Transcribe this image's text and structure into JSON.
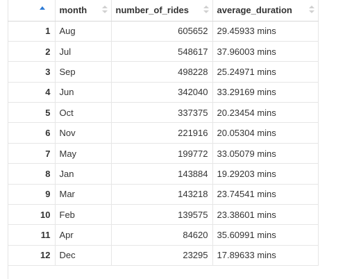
{
  "table": {
    "columns": [
      "",
      "month",
      "number_of_rides",
      "average_duration"
    ],
    "sorted_column_index": 0,
    "rows": [
      {
        "n": "1",
        "month": "Aug",
        "number_of_rides": "605652",
        "average_duration": "29.45933 mins"
      },
      {
        "n": "2",
        "month": "Jul",
        "number_of_rides": "548617",
        "average_duration": "37.96003 mins"
      },
      {
        "n": "3",
        "month": "Sep",
        "number_of_rides": "498228",
        "average_duration": "25.24971 mins"
      },
      {
        "n": "4",
        "month": "Jun",
        "number_of_rides": "342040",
        "average_duration": "33.29169 mins"
      },
      {
        "n": "5",
        "month": "Oct",
        "number_of_rides": "337375",
        "average_duration": "20.23454 mins"
      },
      {
        "n": "6",
        "month": "Nov",
        "number_of_rides": "221916",
        "average_duration": "20.05304 mins"
      },
      {
        "n": "7",
        "month": "May",
        "number_of_rides": "199772",
        "average_duration": "33.05079 mins"
      },
      {
        "n": "8",
        "month": "Jan",
        "number_of_rides": "143884",
        "average_duration": "19.29203 mins"
      },
      {
        "n": "9",
        "month": "Mar",
        "number_of_rides": "143218",
        "average_duration": "23.74541 mins"
      },
      {
        "n": "10",
        "month": "Feb",
        "number_of_rides": "139575",
        "average_duration": "23.38601 mins"
      },
      {
        "n": "11",
        "month": "Apr",
        "number_of_rides": "84620",
        "average_duration": "35.60991 mins"
      },
      {
        "n": "12",
        "month": "Dec",
        "number_of_rides": "23295",
        "average_duration": "17.89633 mins"
      }
    ]
  },
  "colors": {
    "sort_active": "#2e7bd6",
    "sort_inactive": "#d0d0d0",
    "grid_line": "#e6e6e6"
  },
  "icons": {
    "sort_active": "sort-ascending-icon",
    "sort_inactive": "sort-icon"
  }
}
